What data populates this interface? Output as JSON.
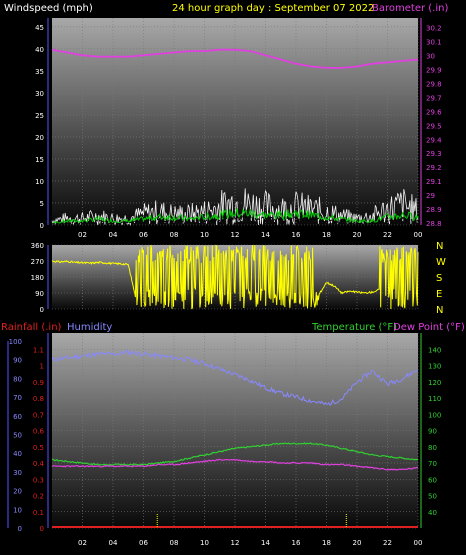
{
  "title": "24 hour graph day : September 07 2022",
  "colors": {
    "background": "#000000",
    "panel_top": "#a8a8a8",
    "panel_bottom": "#080808",
    "grid": "#7a7a7a",
    "wind_axis": "#ffffff",
    "barometer": "#e040e0",
    "direction": "#ffff00",
    "rainfall": "#e02020",
    "humidity": "#8888ff",
    "temperature": "#30d030",
    "dewpoint": "#e040e0",
    "wind_gust": "#f2f2f2",
    "wind_avg": "#00cc00",
    "wind_dash": "#000000",
    "rain_marker": "#ffff00"
  },
  "x_ticks": [
    "02",
    "04",
    "06",
    "08",
    "10",
    "12",
    "14",
    "16",
    "18",
    "20",
    "22",
    "00"
  ],
  "chart_data": [
    {
      "type": "line",
      "name": "wind-barometer",
      "left_label": "Windspeed (mph)",
      "right_label": "Barometer (.in)",
      "left_ticks": [
        "0",
        "5",
        "10",
        "15",
        "20",
        "25",
        "30",
        "35",
        "40",
        "45"
      ],
      "left_range": [
        0,
        47
      ],
      "right_ticks": [
        "28.8",
        "28.9",
        "29",
        "29.1",
        "29.2",
        "29.3",
        "29.4",
        "29.5",
        "29.6",
        "29.7",
        "29.8",
        "29.9",
        "30",
        "30.1",
        "30.2"
      ],
      "right_range": [
        28.787,
        30.267
      ],
      "x_range": [
        0,
        24
      ],
      "barometer": {
        "x": [
          0,
          1,
          2,
          3,
          4,
          5,
          6,
          7,
          8,
          9,
          10,
          11,
          12,
          13,
          14,
          15,
          16,
          17,
          18,
          19,
          20,
          21,
          22,
          23,
          24
        ],
        "y": [
          30.04,
          30.02,
          30.0,
          29.99,
          29.99,
          29.99,
          30.0,
          30.01,
          30.02,
          30.03,
          30.03,
          30.04,
          30.04,
          30.03,
          30.0,
          29.97,
          29.94,
          29.92,
          29.91,
          29.91,
          29.92,
          29.94,
          29.95,
          29.96,
          29.97
        ]
      },
      "wind_gust_max": {
        "x": [
          0,
          1,
          2,
          3,
          4,
          5,
          6,
          7,
          8,
          9,
          10,
          11,
          12,
          13,
          14,
          15,
          16,
          17,
          18,
          19,
          20,
          21,
          22,
          23,
          24
        ],
        "y": [
          2,
          3,
          3,
          4,
          3,
          3,
          5,
          6,
          5,
          5,
          6,
          8,
          10,
          9,
          8,
          7,
          8,
          7,
          6,
          4,
          3,
          4,
          7,
          9,
          6
        ]
      },
      "wind_avg": {
        "x": [
          0,
          1,
          2,
          3,
          4,
          5,
          6,
          7,
          8,
          9,
          10,
          11,
          12,
          13,
          14,
          15,
          16,
          17,
          18,
          19,
          20,
          21,
          22,
          23,
          24
        ],
        "y": [
          0.5,
          1,
          1,
          1.5,
          1,
          1,
          1.5,
          2,
          2,
          1.5,
          2,
          2.5,
          3,
          3,
          2.5,
          2.5,
          3,
          2.5,
          2,
          1.5,
          1,
          1,
          2,
          2.5,
          2
        ]
      }
    },
    {
      "type": "line",
      "name": "wind-direction",
      "left_ticks": [
        "0",
        "90",
        "180",
        "270",
        "360"
      ],
      "left_range": [
        0,
        360
      ],
      "right_ticks": [
        "N",
        "W",
        "S",
        "E",
        "N"
      ],
      "x_range": [
        0,
        24
      ],
      "direction": {
        "x": [
          0,
          0.5,
          1,
          1.5,
          2,
          2.5,
          3,
          3.5,
          4,
          4.5,
          5,
          5.5,
          6,
          6.5,
          7,
          7.5,
          8,
          8.5,
          9,
          9.5,
          10,
          10.5,
          11,
          11.5,
          12,
          12.5,
          13,
          13.5,
          14,
          14.5,
          15,
          15.5,
          16,
          16.5,
          17,
          17.5,
          18,
          18.5,
          19,
          19.5,
          20,
          20.5,
          21,
          21.5,
          22,
          22.5,
          23,
          23.5,
          24
        ],
        "y": [
          270,
          265,
          268,
          262,
          260,
          258,
          262,
          260,
          255,
          255,
          250,
          60,
          270,
          30,
          300,
          40,
          320,
          60,
          290,
          20,
          340,
          50,
          300,
          30,
          310,
          70,
          280,
          20,
          330,
          40,
          300,
          60,
          320,
          30,
          290,
          80,
          150,
          130,
          90,
          100,
          95,
          90,
          95,
          110,
          300,
          30,
          320,
          40,
          280
        ]
      }
    },
    {
      "type": "line",
      "name": "rain-humidity-temperature",
      "left_label_1": "Rainfall (.in)",
      "left_label_2": "Humidity",
      "right_label_1": "Temperature (°F)",
      "right_label_2": "Dew Point (°F)",
      "rain_ticks": [
        "0",
        "0.1",
        "0.2",
        "0.3",
        "0.4",
        "0.5",
        "0.6",
        "0.7",
        "0.8",
        "0.9",
        "1",
        "1.1"
      ],
      "rain_range": [
        0,
        1.2
      ],
      "humidity_ticks": [
        "0",
        "10",
        "20",
        "30",
        "40",
        "50",
        "60",
        "70",
        "80",
        "90",
        "100"
      ],
      "humidity_range": [
        0,
        100
      ],
      "temp_ticks": [
        "40",
        "50",
        "60",
        "70",
        "80",
        "90",
        "100",
        "110",
        "120",
        "130",
        "140"
      ],
      "temp_range": [
        30,
        150
      ],
      "x_range": [
        0,
        24
      ],
      "humidity": {
        "x": [
          0,
          1,
          2,
          3,
          4,
          5,
          6,
          7,
          8,
          9,
          10,
          11,
          12,
          13,
          14,
          15,
          16,
          17,
          18,
          19,
          20,
          21,
          22,
          23,
          24
        ],
        "y": [
          90,
          91,
          92,
          93,
          93,
          94,
          93,
          92,
          91,
          90,
          88,
          85,
          82,
          79,
          75,
          72,
          70,
          68,
          66,
          69,
          78,
          84,
          77,
          80,
          85
        ]
      },
      "temperature": {
        "x": [
          0,
          1,
          2,
          3,
          4,
          5,
          6,
          7,
          8,
          9,
          10,
          11,
          12,
          13,
          14,
          15,
          16,
          17,
          18,
          19,
          20,
          21,
          22,
          23,
          24
        ],
        "y": [
          72,
          71,
          70,
          69,
          69,
          69,
          69,
          70,
          71,
          73,
          75,
          77,
          79,
          80,
          81,
          82,
          82,
          82,
          81,
          79,
          77,
          75,
          74,
          73,
          72
        ]
      },
      "dewpoint": {
        "x": [
          0,
          1,
          2,
          3,
          4,
          5,
          6,
          7,
          8,
          9,
          10,
          11,
          12,
          13,
          14,
          15,
          16,
          17,
          18,
          19,
          20,
          21,
          22,
          23,
          24
        ],
        "y": [
          68,
          68,
          68,
          68,
          68,
          68,
          68,
          69,
          69,
          70,
          71,
          72,
          72,
          71,
          71,
          70,
          70,
          70,
          69,
          69,
          68,
          67,
          66,
          66,
          67
        ]
      },
      "rainfall": {
        "x": [
          0,
          24
        ],
        "y": [
          0,
          0
        ]
      },
      "rain_markers_x": [
        6.9,
        19.3
      ]
    }
  ]
}
